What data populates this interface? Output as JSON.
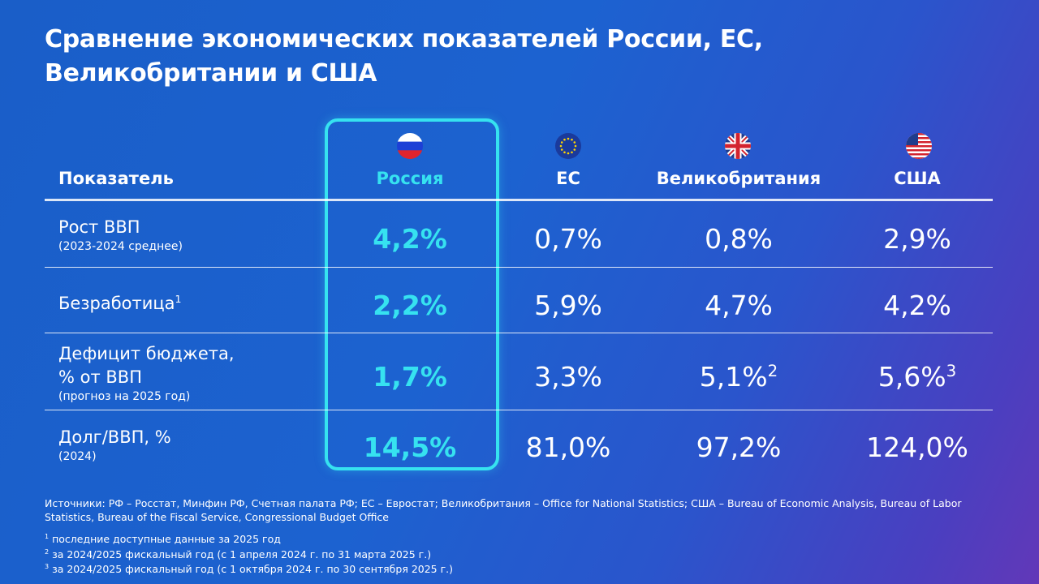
{
  "title": "Сравнение экономических показателей России, ЕС, Великобритании и США",
  "header": {
    "indicator": "Показатель",
    "columns": [
      {
        "key": "russia",
        "label": "Россия",
        "flag_icon": "russia-flag-icon"
      },
      {
        "key": "eu",
        "label": "ЕС",
        "flag_icon": "eu-flag-icon"
      },
      {
        "key": "uk",
        "label": "Великобритания",
        "flag_icon": "uk-flag-icon"
      },
      {
        "key": "usa",
        "label": "США",
        "flag_icon": "usa-flag-icon"
      }
    ]
  },
  "rows": [
    {
      "label": "Рост ВВП",
      "sup": "",
      "label2": "",
      "sub": "(2023-2024 среднее)",
      "values": [
        {
          "v": "4,2%",
          "sup": ""
        },
        {
          "v": "0,7%",
          "sup": ""
        },
        {
          "v": "0,8%",
          "sup": ""
        },
        {
          "v": "2,9%",
          "sup": ""
        }
      ]
    },
    {
      "label": "Безработица",
      "sup": "1",
      "label2": "",
      "sub": "",
      "values": [
        {
          "v": "2,2%",
          "sup": ""
        },
        {
          "v": "5,9%",
          "sup": ""
        },
        {
          "v": "4,7%",
          "sup": ""
        },
        {
          "v": "4,2%",
          "sup": ""
        }
      ]
    },
    {
      "label": "Дефицит бюджета,",
      "sup": "",
      "label2": "% от ВВП",
      "sub": "(прогноз на 2025 год)",
      "values": [
        {
          "v": "1,7%",
          "sup": ""
        },
        {
          "v": "3,3%",
          "sup": ""
        },
        {
          "v": "5,1%",
          "sup": "2"
        },
        {
          "v": "5,6%",
          "sup": "3"
        }
      ]
    },
    {
      "label": "Долг/ВВП, %",
      "sup": "",
      "label2": "",
      "sub": "(2024)",
      "values": [
        {
          "v": "14,5%",
          "sup": ""
        },
        {
          "v": "81,0%",
          "sup": ""
        },
        {
          "v": "97,2%",
          "sup": ""
        },
        {
          "v": "124,0%",
          "sup": ""
        }
      ]
    }
  ],
  "colors": {
    "accent": "#36e2f0",
    "background": "#1c62d0"
  },
  "sources": "Источники: РФ – Росстат, Минфин РФ, Счетная палата РФ; ЕС – Евростат; Великобритания – Office for National Statistics; США – Bureau of Economic Analysis, Bureau of Labor Statistics, Bureau of the Fiscal Service, Congressional Budget Office",
  "footnotes": [
    {
      "mark": "1",
      "text": "последние доступные данные за 2025 год"
    },
    {
      "mark": "2",
      "text": "за 2024/2025 фискальный год (с 1 апреля 2024 г. по 31 марта 2025 г.)"
    },
    {
      "mark": "3",
      "text": "за 2024/2025 фискальный год (с 1 октября 2024 г. по 30 сентября 2025 г.)"
    }
  ]
}
